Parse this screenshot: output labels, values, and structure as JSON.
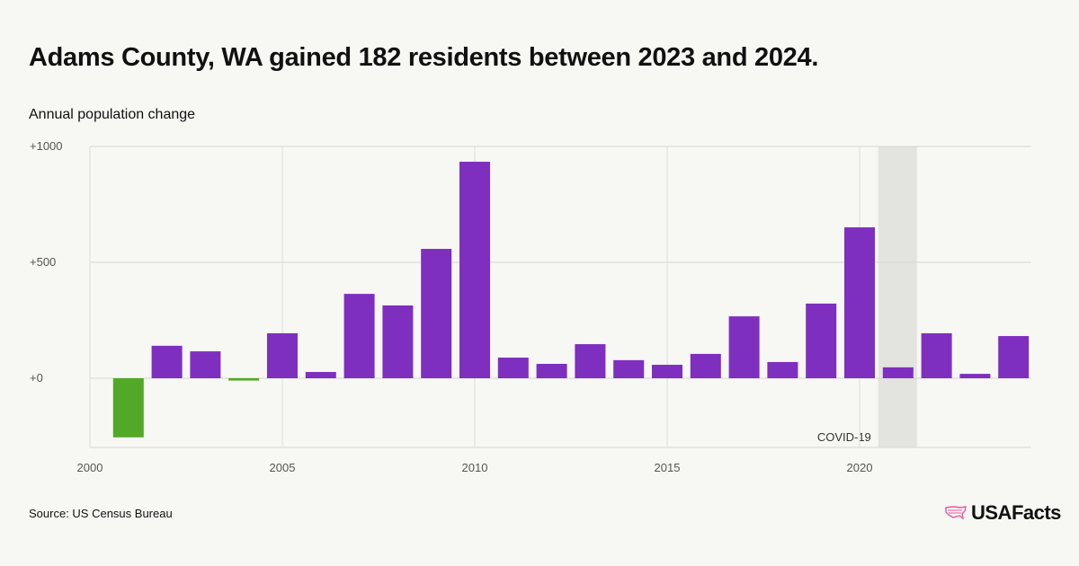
{
  "title": "Adams County, WA gained 182 residents between 2023 and 2024.",
  "source": "Source: US Census Bureau",
  "logo": "USAFacts",
  "colors": {
    "positive": "#7e2fbf",
    "negative": "#52a827",
    "highlight": "#e3e3df",
    "background": "#f7f7f3"
  },
  "chart_data": {
    "type": "bar",
    "title": "Adams County, WA gained 182 residents between 2023 and 2024.",
    "ylabel": "Annual population change",
    "xlabel": "",
    "x": [
      2001,
      2002,
      2003,
      2004,
      2005,
      2006,
      2007,
      2008,
      2009,
      2010,
      2011,
      2012,
      2013,
      2014,
      2015,
      2016,
      2017,
      2018,
      2019,
      2020,
      2021,
      2022,
      2023,
      2024
    ],
    "values": [
      -255,
      140,
      116,
      -10,
      194,
      27,
      364,
      314,
      558,
      934,
      89,
      62,
      147,
      78,
      58,
      105,
      267,
      70,
      322,
      651,
      47,
      194,
      19,
      182
    ],
    "ylim": [
      -300,
      1000
    ],
    "xlim": [
      2000,
      2024.5
    ],
    "yticks": [
      {
        "value": 0,
        "label": "+0"
      },
      {
        "value": 500,
        "label": "+500"
      },
      {
        "value": 1000,
        "label": "+1000"
      }
    ],
    "xticks": [
      {
        "value": 2000,
        "label": "2000"
      },
      {
        "value": 2005,
        "label": "2005"
      },
      {
        "value": 2010,
        "label": "2010"
      },
      {
        "value": 2015,
        "label": "2015"
      },
      {
        "value": 2020,
        "label": "2020"
      }
    ],
    "grid": true,
    "annotation": {
      "label": "COVID-19",
      "year": 2021
    }
  }
}
